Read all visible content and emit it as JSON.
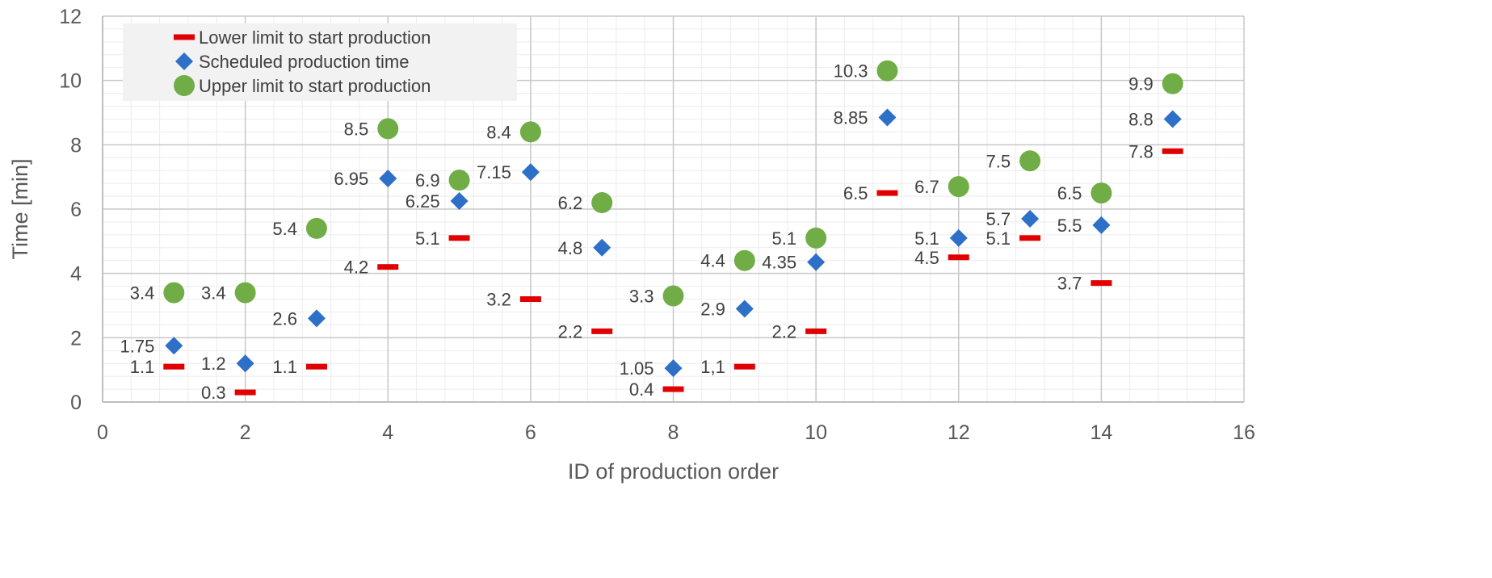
{
  "chart_data": {
    "type": "scatter",
    "title": "",
    "xlabel": "ID of production order",
    "ylabel": "Time [min]",
    "xlim": [
      0,
      16
    ],
    "ylim": [
      0,
      12
    ],
    "x_ticks": [
      0,
      2,
      4,
      6,
      8,
      10,
      12,
      14,
      16
    ],
    "y_ticks": [
      0,
      2,
      4,
      6,
      8,
      10,
      12
    ],
    "grid": true,
    "legend_position": "top-left",
    "series": [
      {
        "name": "Lower limit to start production",
        "marker": "dash",
        "color": "#e00000",
        "x": [
          1,
          2,
          3,
          4,
          5,
          6,
          7,
          8,
          9,
          10,
          11,
          12,
          13,
          14,
          15
        ],
        "values": [
          1.1,
          0.3,
          1.1,
          4.2,
          5.1,
          3.2,
          2.2,
          0.4,
          1.1,
          2.2,
          6.5,
          4.5,
          5.1,
          3.7,
          7.8
        ],
        "labels": [
          "1.1",
          "0.3",
          "1.1",
          "4.2",
          "5.1",
          "3.2",
          "2.2",
          "0.4",
          "1,1",
          "2.2",
          "6.5",
          "4.5",
          "5.1",
          "3.7",
          "7.8"
        ]
      },
      {
        "name": "Scheduled production time",
        "marker": "diamond",
        "color": "#2e6fc7",
        "x": [
          1,
          2,
          3,
          4,
          5,
          6,
          7,
          8,
          9,
          10,
          11,
          12,
          13,
          14,
          15
        ],
        "values": [
          1.75,
          1.2,
          2.6,
          6.95,
          6.25,
          7.15,
          4.8,
          1.05,
          2.9,
          4.35,
          8.85,
          5.1,
          5.7,
          5.5,
          8.8
        ],
        "labels": [
          "1.75",
          "1.2",
          "2.6",
          "6.95",
          "6.25",
          "7.15",
          "4.8",
          "1.05",
          "2.9",
          "4.35",
          "8.85",
          "5.1",
          "5.7",
          "5.5",
          "8.8"
        ]
      },
      {
        "name": "Upper limit to start production",
        "marker": "circle",
        "color": "#70ad47",
        "x": [
          1,
          2,
          3,
          4,
          5,
          6,
          7,
          8,
          9,
          10,
          11,
          12,
          13,
          14,
          15
        ],
        "values": [
          3.4,
          3.4,
          5.4,
          8.5,
          6.9,
          8.4,
          6.2,
          3.3,
          4.4,
          5.1,
          10.3,
          6.7,
          7.5,
          6.5,
          9.9
        ],
        "labels": [
          "3.4",
          "3.4",
          "5.4",
          "8.5",
          "6.9",
          "8.4",
          "6.2",
          "3.3",
          "4.4",
          "5.1",
          "10.3",
          "6.7",
          "7.5",
          "6.5",
          "9.9"
        ]
      }
    ]
  }
}
